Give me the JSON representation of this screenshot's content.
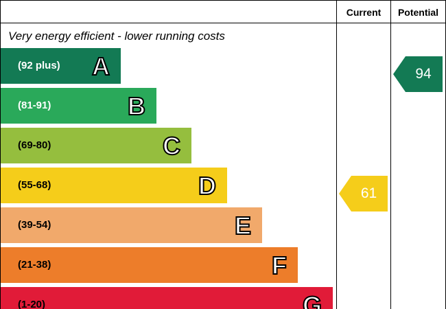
{
  "chart_data": {
    "type": "energy-efficiency-rating",
    "column_headers": {
      "current": "Current",
      "potential": "Potential"
    },
    "top_caption": "Very energy efficient - lower running costs",
    "bands": [
      {
        "letter": "A",
        "range": "(92 plus)",
        "color": "#137a54",
        "text_color": "#ffffff"
      },
      {
        "letter": "B",
        "range": "(81-91)",
        "color": "#2aa95a",
        "text_color": "#ffffff"
      },
      {
        "letter": "C",
        "range": "(69-80)",
        "color": "#95be3e",
        "text_color": "#000000"
      },
      {
        "letter": "D",
        "range": "(55-68)",
        "color": "#f5cd1a",
        "text_color": "#000000"
      },
      {
        "letter": "E",
        "range": "(39-54)",
        "color": "#f1a96b",
        "text_color": "#000000"
      },
      {
        "letter": "F",
        "range": "(21-38)",
        "color": "#ed7d2a",
        "text_color": "#000000"
      },
      {
        "letter": "G",
        "range": "(1-20)",
        "color": "#e11b38",
        "text_color": "#000000"
      }
    ],
    "current": {
      "value": 61,
      "band": "D",
      "color": "#f5cd1a"
    },
    "potential": {
      "value": 94,
      "band": "A",
      "color": "#137a54"
    }
  }
}
